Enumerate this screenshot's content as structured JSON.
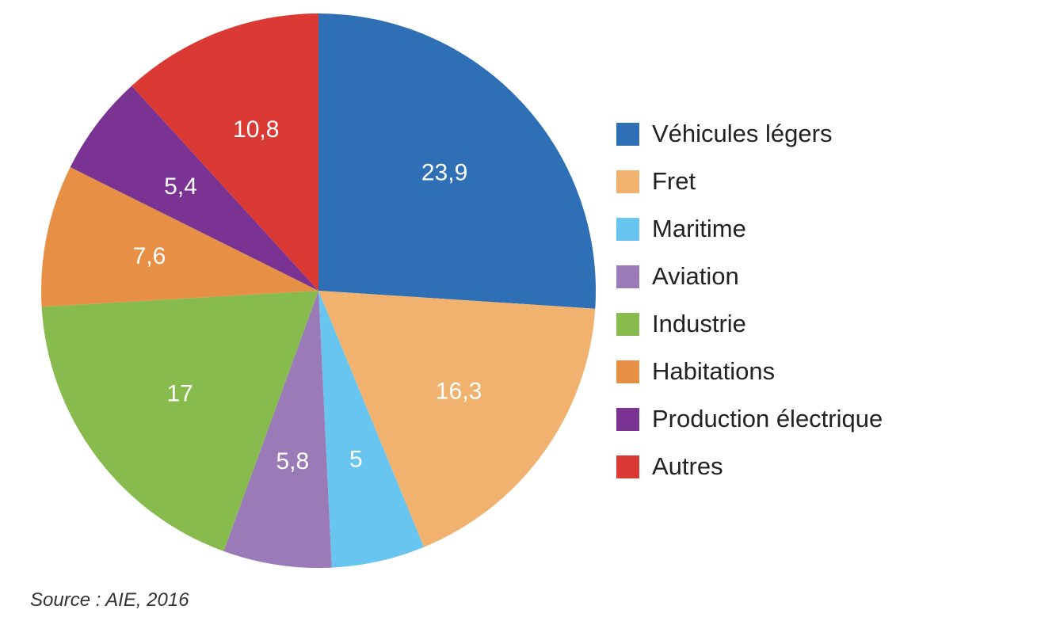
{
  "chart_data": {
    "type": "pie",
    "title": "",
    "slices": [
      {
        "label": "Véhicules légers",
        "value": 23.9,
        "value_label": "23,9",
        "color": "#2E6FB5"
      },
      {
        "label": "Fret",
        "value": 16.3,
        "value_label": "16,3",
        "color": "#F0B26E"
      },
      {
        "label": "Maritime",
        "value": 5,
        "value_label": "5",
        "color": "#68C5EF"
      },
      {
        "label": "Aviation",
        "value": 5.8,
        "value_label": "5,8",
        "color": "#9A7BB8"
      },
      {
        "label": "Industrie",
        "value": 17,
        "value_label": "17",
        "color": "#88BB4D"
      },
      {
        "label": "Habitations",
        "value": 7.6,
        "value_label": "7,6",
        "color": "#E68F45"
      },
      {
        "label": "Production électrique",
        "value": 5.4,
        "value_label": "5,4",
        "color": "#7A3393"
      },
      {
        "label": "Autres",
        "value": 10.8,
        "value_label": "10,8",
        "color": "#DB3A34"
      }
    ],
    "legend_position": "right"
  },
  "source": "Source : AIE, 2016"
}
